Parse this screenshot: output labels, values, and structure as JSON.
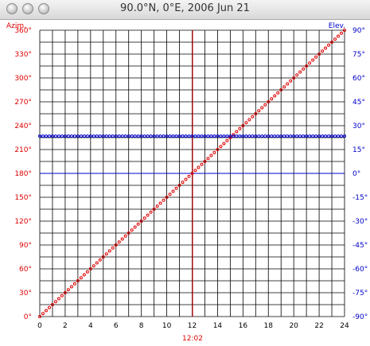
{
  "window": {
    "title": "90.0°N, 0°E, 2006 Jun 21"
  },
  "chart_data": {
    "type": "line",
    "left_axis_title": "Azim.",
    "right_axis_title": "Elev.",
    "x_ticks": [
      0,
      2,
      4,
      6,
      8,
      10,
      12,
      14,
      16,
      18,
      20,
      22,
      24
    ],
    "left_ticks": [
      "0°",
      "30°",
      "60°",
      "90°",
      "120°",
      "150°",
      "180°",
      "210°",
      "240°",
      "270°",
      "300°",
      "330°",
      "360°"
    ],
    "right_ticks": [
      "-90°",
      "-75°",
      "-60°",
      "-45°",
      "-30°",
      "-15°",
      "0°",
      "15°",
      "30°",
      "45°",
      "60°",
      "75°",
      "90°"
    ],
    "xlim": [
      0,
      24
    ],
    "left_ylim": [
      0,
      360
    ],
    "right_ylim": [
      -90,
      90
    ],
    "grid": true,
    "marker": {
      "x": 12.033,
      "label": "12:02"
    },
    "series": [
      {
        "axis": "left",
        "color": "#dd0000",
        "x_start": 0,
        "x_end": 24,
        "y_start": 0,
        "y_end": 360,
        "points": 97
      },
      {
        "axis": "right",
        "color": "#0000cc",
        "x_start": 0,
        "x_end": 24,
        "y_start": 23.44,
        "y_end": 23.44,
        "points": 97
      }
    ],
    "colors": {
      "azimuth": "#dd0000",
      "elevation": "#0000cc",
      "grid": "#000000",
      "reference": "#0000cc"
    }
  }
}
